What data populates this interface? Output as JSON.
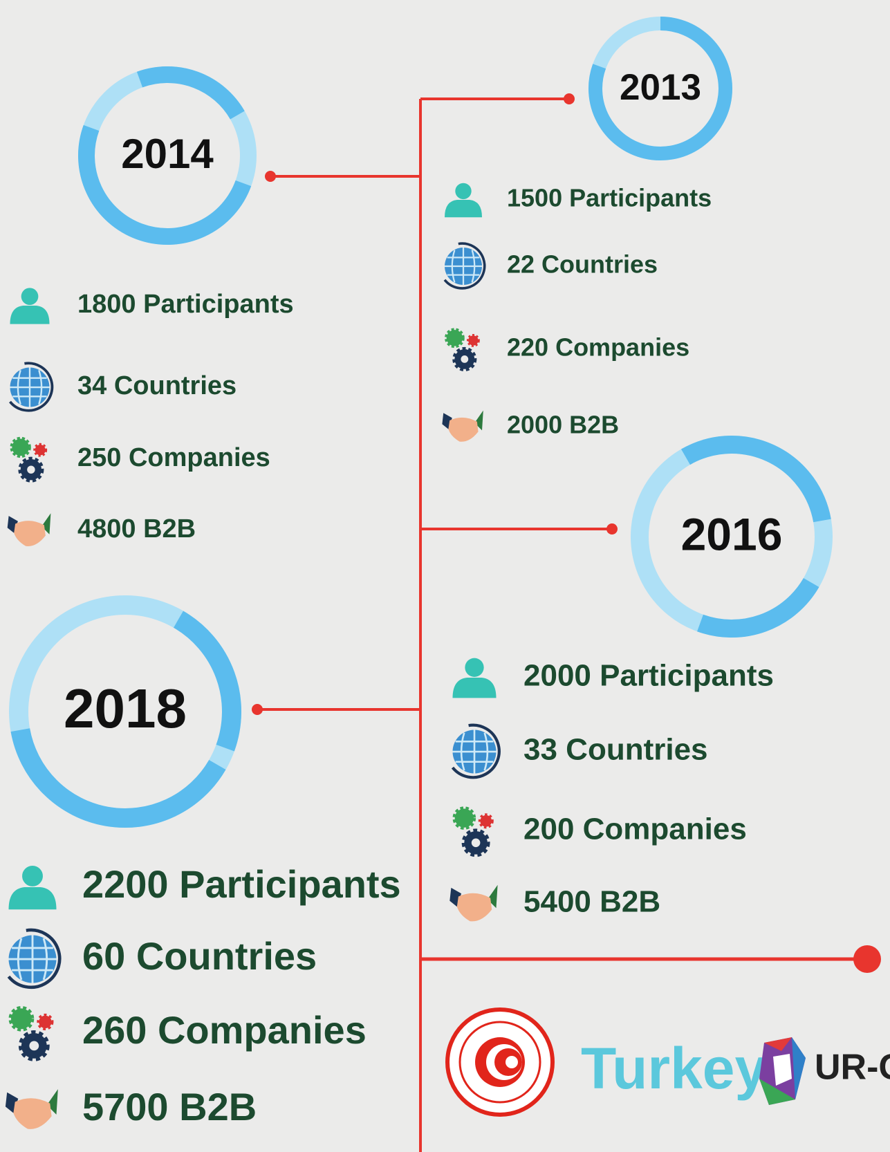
{
  "events": [
    {
      "year": "2013",
      "stats": [
        "1500 Participants",
        "22 Countries",
        "220 Companies",
        "2000 B2B"
      ]
    },
    {
      "year": "2014",
      "stats": [
        "1800 Participants",
        "34 Countries",
        "250 Companies",
        "4800 B2B"
      ]
    },
    {
      "year": "2016",
      "stats": [
        "2000 Participants",
        "33 Countries",
        "200 Companies",
        "5400 B2B"
      ]
    },
    {
      "year": "2018",
      "stats": [
        "2200 Participants",
        "60 Countries",
        "260 Companies",
        "5700 B2B"
      ]
    }
  ],
  "logos": {
    "turkey": "Turkey",
    "urge": "UR-GE"
  }
}
